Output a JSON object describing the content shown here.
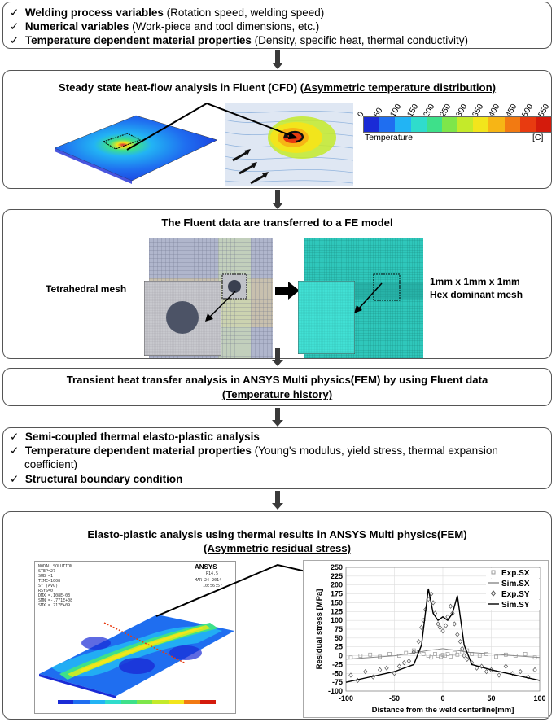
{
  "box1": {
    "items": [
      {
        "bold": "Welding process variables",
        "rest": " (Rotation speed, welding speed)"
      },
      {
        "bold": "Numerical variables",
        "rest": " (Work-piece and tool dimensions, etc.)"
      },
      {
        "bold": "Temperature dependent material properties",
        "rest": " (Density, specific heat, thermal conductivity)"
      }
    ]
  },
  "box2": {
    "title": "Steady state heat-flow analysis in Fluent (CFD)",
    "title_u": "(Asymmetric temperature distribution)",
    "legend": {
      "ticks": [
        "0",
        "50",
        "100",
        "150",
        "200",
        "250",
        "300",
        "350",
        "400",
        "450",
        "500",
        "550"
      ],
      "label": "Temperature",
      "unit": "[C]",
      "colors": [
        "#1a2bd6",
        "#1f6ef0",
        "#22b4f4",
        "#2fdccc",
        "#3ee08a",
        "#7ee64a",
        "#c4ea2a",
        "#f2e51c",
        "#f7b515",
        "#f27a12",
        "#e83b10",
        "#d41b0c"
      ]
    }
  },
  "box3": {
    "title": "The Fluent data are transferred to a FE model",
    "left_label": "Tetrahedral mesh",
    "right_label_1": "1mm x 1mm x 1mm",
    "right_label_2": "Hex dominant mesh"
  },
  "box4": {
    "title": "Transient heat transfer analysis in ANSYS Multi physics(FEM) by using Fluent data",
    "title_u": "(Temperature history)"
  },
  "box5": {
    "items": [
      {
        "bold": "Semi-coupled thermal elasto-plastic analysis",
        "rest": ""
      },
      {
        "bold": "Temperature dependent material properties",
        "rest": " (Young's modulus, yield stress, thermal expansion"
      },
      {
        "bold": "",
        "rest": "coefficient)"
      },
      {
        "bold": "Structural boundary condition",
        "rest": ""
      }
    ]
  },
  "box6": {
    "title": "Elasto-plastic analysis using thermal results in ANSYS Multi physics(FEM)",
    "title_u": "(Asymmetric residual stress)",
    "ansys": {
      "brand": "ANSYS",
      "version": "R14.5",
      "header_lines": [
        "NODAL SOLUTION",
        "STEP=27",
        "SUB =1",
        "TIME=1008",
        "SY      (AVG)",
        "RSYS=0",
        "DMX =.108E-03",
        "SMN =-.771E+08",
        "SMX =.217E+09"
      ],
      "date": "MAR 24 2014",
      "time": "10:56:57",
      "colorbar": [
        "#1a2bd6",
        "#1f6ef0",
        "#22b4f4",
        "#2fdccc",
        "#3ee08a",
        "#7ee64a",
        "#c4ea2a",
        "#f2e51c",
        "#f27a12",
        "#d41b0c"
      ]
    }
  },
  "chart_data": {
    "type": "scatter",
    "xlabel": "Distance from the weld centerline[mm]",
    "ylabel": "Residual stress [MPa]",
    "xlim": [
      -100,
      100
    ],
    "ylim": [
      -100,
      250
    ],
    "xticks": [
      -100,
      -50,
      0,
      50,
      100
    ],
    "yticks": [
      -100,
      -75,
      -50,
      -25,
      0,
      25,
      50,
      75,
      100,
      125,
      150,
      175,
      200,
      225,
      250
    ],
    "legend_position": "top-right",
    "series": [
      {
        "name": "Exp.SX",
        "kind": "points",
        "marker": "square",
        "x": [
          -95,
          -85,
          -75,
          -65,
          -55,
          -45,
          -38,
          -30,
          -25,
          -20,
          -15,
          -12,
          -8,
          -5,
          -2,
          0,
          2,
          5,
          8,
          12,
          15,
          20,
          25,
          30,
          38,
          45,
          55,
          65,
          75,
          85,
          95
        ],
        "y": [
          -5,
          0,
          3,
          -3,
          5,
          0,
          8,
          15,
          10,
          5,
          0,
          -5,
          5,
          0,
          -3,
          2,
          0,
          5,
          -2,
          8,
          3,
          10,
          15,
          5,
          0,
          5,
          -3,
          3,
          0,
          5,
          -5
        ]
      },
      {
        "name": "Sim.SX",
        "kind": "line",
        "color": "#888",
        "x": [
          -100,
          -75,
          -50,
          -25,
          -15,
          -5,
          0,
          5,
          15,
          25,
          50,
          75,
          100
        ],
        "y": [
          -10,
          -5,
          0,
          10,
          15,
          18,
          20,
          18,
          15,
          10,
          5,
          0,
          -5
        ]
      },
      {
        "name": "Exp.SY",
        "kind": "points",
        "marker": "diamond",
        "x": [
          -95,
          -88,
          -80,
          -72,
          -65,
          -58,
          -50,
          -45,
          -40,
          -35,
          -30,
          -25,
          -22,
          -20,
          -18,
          -15,
          -12,
          -10,
          -8,
          -5,
          -3,
          0,
          3,
          5,
          8,
          10,
          12,
          15,
          18,
          20,
          22,
          25,
          30,
          35,
          40,
          45,
          50,
          58,
          65,
          72,
          80,
          88,
          95
        ],
        "y": [
          -55,
          -70,
          -45,
          -60,
          -40,
          -35,
          -50,
          -30,
          -20,
          -15,
          10,
          40,
          80,
          100,
          130,
          160,
          175,
          150,
          120,
          90,
          80,
          70,
          85,
          110,
          140,
          120,
          90,
          60,
          40,
          20,
          0,
          -10,
          -20,
          -35,
          -30,
          -45,
          -40,
          -55,
          -30,
          -50,
          -45,
          -60,
          -40
        ]
      },
      {
        "name": "Sim.SY",
        "kind": "line",
        "color": "#000",
        "x": [
          -100,
          -75,
          -50,
          -30,
          -22,
          -15,
          -10,
          -5,
          0,
          5,
          10,
          15,
          22,
          30,
          50,
          75,
          100
        ],
        "y": [
          -75,
          -60,
          -45,
          -25,
          30,
          190,
          120,
          100,
          110,
          100,
          120,
          170,
          30,
          -25,
          -40,
          -55,
          -70
        ]
      }
    ]
  }
}
